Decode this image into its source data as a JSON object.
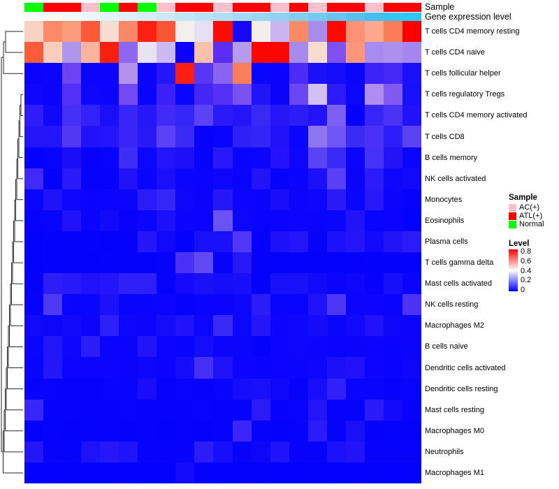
{
  "figure": {
    "top_annotation_labels": {
      "sample": "Sample",
      "gene_expression": "Gene expression level"
    }
  },
  "chart_data": {
    "type": "heatmap",
    "title": "",
    "n_columns": 21,
    "column_labels_shown": false,
    "row_labels": [
      "T cells CD4 memory resting",
      "T cells CD4 naive",
      "T cells follicular helper",
      "T cells regulatory Tregs",
      "T cells CD4 memory activated",
      "T cells CD8",
      "B cells memory",
      "NK cells activated",
      "Monocytes",
      "Eosinophils",
      "Plasma cells",
      "T cells gamma delta",
      "Mast cells activated",
      "NK cells resting",
      "Macrophages M2",
      "B cells naive",
      "Dendritic cells activated",
      "Dendritic cells resting",
      "Mast cells resting",
      "Macrophages M0",
      "Neutrophils",
      "Macrophages M1"
    ],
    "column_annotations": {
      "sample": {
        "label": "Sample",
        "values": [
          "Normal",
          "ATL(+)",
          "ATL(+)",
          "AC(+)",
          "Normal",
          "ATL(+)",
          "Normal",
          "AC(+)",
          "ATL(+)",
          "ATL(+)",
          "AC(+)",
          "ATL(+)",
          "ATL(+)",
          "AC(+)",
          "ATL(+)",
          "AC(+)",
          "ATL(+)",
          "ATL(+)",
          "AC(+)",
          "ATL(+)",
          "ATL(+)"
        ],
        "category_colors": {
          "AC(+)": "#FFC0CB",
          "ATL(+)": "#FF0000",
          "Normal": "#00FF00"
        }
      },
      "gene_expression_level": {
        "label": "Gene expression level",
        "cell_colors": [
          "#FFFFFF",
          "#F8FCFE",
          "#F1F9FD",
          "#EAF6FC",
          "#E3F3FB",
          "#DBF0FA",
          "#D3EDF9",
          "#CBE9F8",
          "#C2E6F7",
          "#B9E2F6",
          "#AFDEF5",
          "#A5DAF4",
          "#9AD6F3",
          "#8FD2F2",
          "#83CDF1",
          "#76C9F0",
          "#68C4EF",
          "#59BFEE",
          "#49BDF0",
          "#3AC4F4",
          "#2DC6F6"
        ]
      }
    },
    "color_scale": {
      "label": "Level",
      "min": 0,
      "max": 0.85,
      "low_color": "#0000FF",
      "mid_color": "#FFFFFF",
      "high_color": "#FF0000"
    },
    "cell_colors": [
      [
        "#FBD2C2",
        "#FA8A68",
        "#FB9B7E",
        "#FA593A",
        "#F8DCD4",
        "#FA8866",
        "#FB2112",
        "#FA5535",
        "#F2EFEE",
        "#E6E0F5",
        "#FB0D05",
        "#1609F5",
        "#F3EEEC",
        "#C9B6F0",
        "#F98A68",
        "#A98BEA",
        "#FA0A02",
        "#FB9276",
        "#FBA88D",
        "#FA7C58",
        "#FB0000"
      ],
      [
        "#FA5B3B",
        "#FBCDBC",
        "#AD96EC",
        "#FBB59E",
        "#F9200D",
        "#8F66F0",
        "#E8E2F2",
        "#CCB9F2",
        "#0D00FA",
        "#FBC0AA",
        "#5B2DF6",
        "#B49BEE",
        "#FA0800",
        "#F90800",
        "#A88AEC",
        "#F7DCD2",
        "#7F50F2",
        "#FB9678",
        "#A78BEE",
        "#AC90EE",
        "#A585EE"
      ],
      [
        "#0903FB",
        "#0B06FB",
        "#6A43F2",
        "#0B06FB",
        "#0B06FB",
        "#B392EE",
        "#0A04FB",
        "#2317F8",
        "#FA1F10",
        "#5936F4",
        "#8A64F0",
        "#F97E5C",
        "#0B05FB",
        "#0A04FB",
        "#4B2CF6",
        "#1B10FA",
        "#150CFA",
        "#0B05FB",
        "#3B22F7",
        "#4629F6",
        "#1C10F9"
      ],
      [
        "#0D07FB",
        "#0A04FB",
        "#5230F5",
        "#0C06FB",
        "#0B05FB",
        "#7448F3",
        "#0A04FB",
        "#3C20F7",
        "#0A05FB",
        "#4427F7",
        "#5531F5",
        "#7A52F2",
        "#2014F9",
        "#0A04FB",
        "#6B46F3",
        "#D3C0F2",
        "#2C1BF8",
        "#0C06FB",
        "#B08CEE",
        "#8059F1",
        "#1810FA"
      ],
      [
        "#2E1DF8",
        "#1008FB",
        "#4530F6",
        "#3322F7",
        "#190FF9",
        "#3726F7",
        "#2517F8",
        "#4129F7",
        "#3625F7",
        "#5B43F4",
        "#2B1AF8",
        "#2415F9",
        "#3A28F7",
        "#2716F8",
        "#2C1CF8",
        "#2213F9",
        "#7B61F1",
        "#0501FB",
        "#3726F7",
        "#4B33F6",
        "#2312F9"
      ],
      [
        "#2415F9",
        "#2314F9",
        "#5038F5",
        "#2112F9",
        "#2314F9",
        "#3726F7",
        "#2818F8",
        "#5A41F5",
        "#3B2AF7",
        "#0703FB",
        "#0904FB",
        "#2F1FF8",
        "#3524F7",
        "#2113F9",
        "#0A05FB",
        "#8D75EF",
        "#6F55F3",
        "#3C2BF7",
        "#4932F6",
        "#2D1DF8",
        "#5B43F4"
      ],
      [
        "#0502FB",
        "#0905FB",
        "#1A0EF9",
        "#0703FB",
        "#0804FB",
        "#3E2CF7",
        "#0C06FB",
        "#2315F9",
        "#1C10F9",
        "#0603FB",
        "#2819F8",
        "#0904FB",
        "#0A05FB",
        "#2413F9",
        "#0C06FB",
        "#5B43F4",
        "#3B2AF7",
        "#0B05FB",
        "#4631F6",
        "#2313F9",
        "#0B05FB"
      ],
      [
        "#4129F7",
        "#0402FB",
        "#2A1AF8",
        "#0603FB",
        "#0703FB",
        "#2111F9",
        "#0904FB",
        "#1910F9",
        "#0A05FB",
        "#0904FB",
        "#0C06FB",
        "#0804FB",
        "#2213F9",
        "#0703FB",
        "#0904FB",
        "#1C10F9",
        "#5940F5",
        "#0A04FB",
        "#2B1BF8",
        "#0C06FB",
        "#1209FA"
      ],
      [
        "#0B05FB",
        "#2012F9",
        "#0C06FB",
        "#0904FB",
        "#0A05FB",
        "#0B05FB",
        "#2B1BF8",
        "#3625F7",
        "#0C06FB",
        "#0A04FB",
        "#2517F8",
        "#0B06FB",
        "#0904FB",
        "#190EF9",
        "#0B05FB",
        "#0C06FB",
        "#2B1AF8",
        "#0A05FB",
        "#2918F8",
        "#0B05FB",
        "#0703FB"
      ],
      [
        "#0703FB",
        "#0804FB",
        "#2113F9",
        "#0904FB",
        "#1209FA",
        "#0703FB",
        "#0B05FB",
        "#1B10F9",
        "#0A04FB",
        "#0904FB",
        "#6B53F3",
        "#0C06FB",
        "#0803FB",
        "#0A04FB",
        "#0B05FB",
        "#0904FB",
        "#0A05FB",
        "#2313F9",
        "#0904FB",
        "#0A04FB",
        "#0201FD"
      ],
      [
        "#0301FC",
        "#0402FC",
        "#0502FB",
        "#0402FC",
        "#0301FC",
        "#0402FC",
        "#2516F9",
        "#1209FA",
        "#0402FB",
        "#1810F9",
        "#190FF9",
        "#4F37F6",
        "#0502FB",
        "#1D11F9",
        "#2314F9",
        "#0603FB",
        "#1C11F9",
        "#2414F9",
        "#1209FA",
        "#2213F9",
        "#2B1BF8"
      ],
      [
        "#0301FC",
        "#0402FC",
        "#0402FB",
        "#0301FC",
        "#0402FC",
        "#0502FB",
        "#0402FC",
        "#0603FB",
        "#4931F6",
        "#6049F5",
        "#0703FB",
        "#2718F8",
        "#0402FB",
        "#0301FC",
        "#0402FC",
        "#0502FB",
        "#0402FC",
        "#0301FC",
        "#0402FB",
        "#0502FB",
        "#0402FC"
      ],
      [
        "#0402FB",
        "#2D1EF8",
        "#2819F8",
        "#1F12F9",
        "#2315F9",
        "#2F20F8",
        "#2E1EF8",
        "#0603FB",
        "#150BFA",
        "#1B11F9",
        "#150CFA",
        "#190EF9",
        "#0502FB",
        "#1810FA",
        "#190FF9",
        "#1209FA",
        "#0904FB",
        "#0C06FB",
        "#0703FB",
        "#1610FA",
        "#0904FB"
      ],
      [
        "#0703FB",
        "#4F39F5",
        "#0904FB",
        "#0A05FB",
        "#1C11F9",
        "#0804FB",
        "#0904FB",
        "#0B05FB",
        "#0703FB",
        "#0904FB",
        "#0A04FB",
        "#0C06FB",
        "#2C1CF8",
        "#0904FB",
        "#0803FB",
        "#2012F9",
        "#4E36F6",
        "#0A05FB",
        "#0B05FB",
        "#0904FB",
        "#4B33F6"
      ],
      [
        "#1209FA",
        "#0C06FB",
        "#1209FA",
        "#0B05FB",
        "#2E20F8",
        "#0C06FB",
        "#0B06FB",
        "#150CFA",
        "#1F13F9",
        "#0C06FB",
        "#3B2AF7",
        "#0C06FB",
        "#2416F9",
        "#0B05FB",
        "#0C06FB",
        "#150BFA",
        "#0B05FB",
        "#1209FA",
        "#2112F9",
        "#0C06FB",
        "#0B05FB"
      ],
      [
        "#0B05FB",
        "#2315F9",
        "#0C06FB",
        "#2B1CF8",
        "#0904FB",
        "#0A04FB",
        "#2313F9",
        "#0B05FB",
        "#0904FB",
        "#150CFA",
        "#0B05FB",
        "#0A05FB",
        "#0402FB",
        "#0B05FB",
        "#0C06FB",
        "#0B05FB",
        "#0904FB",
        "#0A04FB",
        "#0B05FB",
        "#0904FB",
        "#0A05FB"
      ],
      [
        "#0904FB",
        "#2416F9",
        "#0B05FB",
        "#0A05FB",
        "#0B05FB",
        "#0904FB",
        "#0C06FB",
        "#0A04FB",
        "#170DFA",
        "#4730F6",
        "#2011F9",
        "#0B05FB",
        "#0904FB",
        "#0B05FB",
        "#0A05FB",
        "#0C06FB",
        "#1C10F9",
        "#2212F9",
        "#0B05FB",
        "#0904FB",
        "#0C06FB"
      ],
      [
        "#0703FB",
        "#0804FB",
        "#0703FB",
        "#0603FB",
        "#0804FB",
        "#0904FB",
        "#1A0EF9",
        "#0703FB",
        "#0804FB",
        "#0703FB",
        "#0904FB",
        "#140CFA",
        "#190FF9",
        "#0F08FA",
        "#0703FB",
        "#180EF9",
        "#3220F8",
        "#0904FB",
        "#0804FB",
        "#0703FB",
        "#0804FB"
      ],
      [
        "#3927F7",
        "#0603FB",
        "#0703FB",
        "#0603FB",
        "#0703FB",
        "#0804FB",
        "#0703FB",
        "#0603FB",
        "#0703FB",
        "#0804FB",
        "#0703FB",
        "#0603FB",
        "#2C1BF8",
        "#0703FB",
        "#0804FB",
        "#2415F9",
        "#0703FB",
        "#0603FB",
        "#2B1AF8",
        "#1209FA",
        "#0703FB"
      ],
      [
        "#0502FB",
        "#0603FB",
        "#0502FB",
        "#0603FB",
        "#0703FB",
        "#0502FB",
        "#0603FB",
        "#0502FB",
        "#0603FB",
        "#0502FB",
        "#0603FB",
        "#3B26F7",
        "#0603FB",
        "#0502FB",
        "#0603FB",
        "#2A1BF8",
        "#0603FB",
        "#190FF9",
        "#0502FB",
        "#0603FB",
        "#0502FB"
      ],
      [
        "#2516F9",
        "#0703FB",
        "#0603FB",
        "#1E12F9",
        "#2517F8",
        "#1F13F9",
        "#0703FB",
        "#0603FB",
        "#0703FB",
        "#2B1CF8",
        "#170EFA",
        "#0703FB",
        "#0C06FB",
        "#2012F9",
        "#0703FB",
        "#0603FB",
        "#1C11F9",
        "#2313F9",
        "#0703FB",
        "#0603FB",
        "#0703FB"
      ],
      [
        "#0201FD",
        "#0201FD",
        "#0301FC",
        "#0201FD",
        "#0201FD",
        "#0301FC",
        "#0201FD",
        "#0201FD",
        "#140BFA",
        "#0301FC",
        "#0201FD",
        "#0201FD",
        "#0301FC",
        "#0201FD",
        "#0201FD",
        "#0301FC",
        "#0201FD",
        "#0201FD",
        "#0301FC",
        "#0201FD",
        "#0301FC"
      ]
    ],
    "legend": {
      "sample_title": "Sample",
      "sample_items": [
        {
          "label": "AC(+)",
          "color": "#FFC0CB"
        },
        {
          "label": "ATL(+)",
          "color": "#FF0000"
        },
        {
          "label": "Normal",
          "color": "#00FF00"
        }
      ],
      "level_title": "Level",
      "level_ticks": [
        "0.8",
        "0.6",
        "0.4",
        "0.2",
        "0"
      ]
    }
  }
}
